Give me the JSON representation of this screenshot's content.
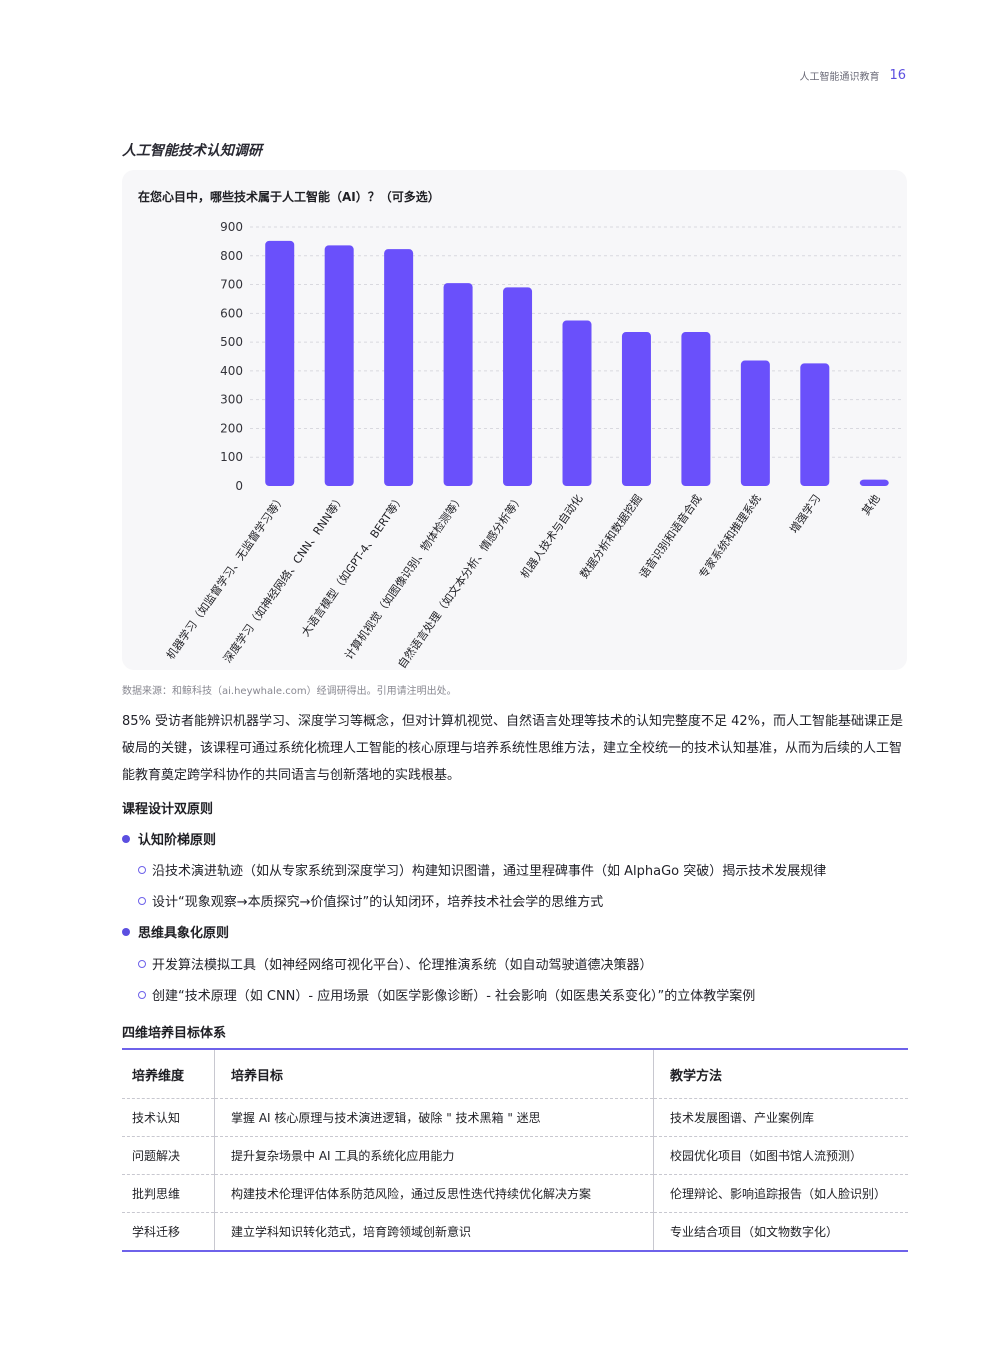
{
  "header": {
    "title": "人工智能通识教育",
    "page": "16"
  },
  "section_title": "人工智能技术认知调研",
  "chart_question": "在您心目中，哪些技术属于人工智能（AI）？（可多选）",
  "chart_data": {
    "type": "bar",
    "categories": [
      "机器学习（如监督学习、无监督学习等）",
      "深度学习（如神经网络、CNN、RNN等）",
      "大语言模型（如GPT-4、BERT等）",
      "计算机视觉（如图像识别、物体检测等）",
      "自然语言处理（如文本分析、情感分析等）",
      "机器人技术与自动化",
      "数据分析和数据挖掘",
      "语音识别和语音合成",
      "专家系统和推理系统",
      "增强学习",
      "其他"
    ],
    "values": [
      852,
      836,
      823,
      705,
      690,
      575,
      535,
      535,
      436,
      426,
      22
    ],
    "yticks": [
      0,
      100,
      200,
      300,
      400,
      500,
      600,
      700,
      800,
      900
    ],
    "ylim": [
      0,
      900
    ],
    "grid": true,
    "color": "#6a50fb"
  },
  "source": "数据来源：和鲸科技（ai.heywhale.com）经调研得出。引用请注明出处。",
  "paragraph": "85% 受访者能辨识机器学习、深度学习等概念，但对计算机视觉、自然语言处理等技术的认知完整度不足 42%，而人工智能基础课正是破局的关键，该课程可通过系统化梳理人工智能的核心原理与培养系统性思维方法，建立全校统一的技术认知基准，从而为后续的人工智能教育奠定跨学科协作的共同语言与创新落地的实践根基。",
  "principles": {
    "title": "课程设计双原则",
    "p1": {
      "title": "认知阶梯原则",
      "items": [
        "沿技术演进轨迹（如从专家系统到深度学习）构建知识图谱，通过里程碑事件（如 AlphaGo 突破）揭示技术发展规律",
        "设计“现象观察→本质探究→价值探讨”的认知闭环，培养技术社会学的思维方式"
      ]
    },
    "p2": {
      "title": "思维具象化原则",
      "items": [
        "开发算法模拟工具（如神经网络可视化平台）、伦理推演系统（如自动驾驶道德决策器）",
        "创建“技术原理（如 CNN）- 应用场景（如医学影像诊断）- 社会影响（如医患关系变化）”的立体教学案例"
      ]
    }
  },
  "table": {
    "title": "四维培养目标体系",
    "headers": [
      "培养维度",
      "培养目标",
      "教学方法"
    ],
    "rows": [
      [
        "技术认知",
        "掌握 AI 核心原理与技术演进逻辑，破除 \" 技术黑箱 \" 迷思",
        "技术发展图谱、产业案例库"
      ],
      [
        "问题解决",
        "提升复杂场景中 AI 工具的系统化应用能力",
        "校园优化项目（如图书馆人流预测）"
      ],
      [
        "批判思维",
        "构建技术伦理评估体系防范风险，通过反思性迭代持续优化解决方案",
        "伦理辩论、影响追踪报告（如人脸识别）"
      ],
      [
        "学科迁移",
        "建立学科知识转化范式，培育跨领域创新意识",
        "专业结合项目（如文物数字化）"
      ]
    ]
  }
}
